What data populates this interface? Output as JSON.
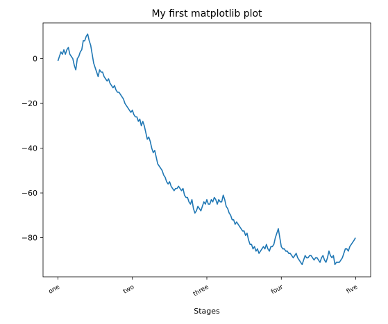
{
  "chart_data": {
    "type": "line",
    "title": "My first matplotlib plot",
    "xlabel": "Stages",
    "ylabel": "",
    "xlim": [
      -50,
      1050
    ],
    "ylim": [
      -97.5,
      16
    ],
    "x_ticks": [
      {
        "value": 0,
        "label": "one"
      },
      {
        "value": 250,
        "label": "two"
      },
      {
        "value": 500,
        "label": "three"
      },
      {
        "value": 750,
        "label": "four"
      },
      {
        "value": 1000,
        "label": "five"
      }
    ],
    "y_ticks": [
      {
        "value": 0,
        "label": "0"
      },
      {
        "value": -20,
        "label": "−20"
      },
      {
        "value": -40,
        "label": "−40"
      },
      {
        "value": -60,
        "label": "−60"
      },
      {
        "value": -80,
        "label": "−80"
      }
    ],
    "grid": false,
    "series": [
      {
        "color": "#1f77b4",
        "x": [
          0,
          5,
          10,
          15,
          20,
          25,
          30,
          35,
          40,
          45,
          50,
          55,
          60,
          65,
          70,
          75,
          80,
          85,
          90,
          95,
          100,
          105,
          110,
          115,
          120,
          125,
          130,
          135,
          140,
          145,
          150,
          155,
          160,
          165,
          170,
          175,
          180,
          185,
          190,
          195,
          200,
          205,
          210,
          215,
          220,
          225,
          230,
          235,
          240,
          245,
          250,
          255,
          260,
          265,
          270,
          275,
          280,
          285,
          290,
          295,
          300,
          305,
          310,
          315,
          320,
          325,
          330,
          335,
          340,
          345,
          350,
          355,
          360,
          365,
          370,
          375,
          380,
          385,
          390,
          395,
          400,
          405,
          410,
          415,
          420,
          425,
          430,
          435,
          440,
          445,
          450,
          455,
          460,
          465,
          470,
          475,
          480,
          485,
          490,
          495,
          500,
          505,
          510,
          515,
          520,
          525,
          530,
          535,
          540,
          545,
          550,
          555,
          560,
          565,
          570,
          575,
          580,
          585,
          590,
          595,
          600,
          605,
          610,
          615,
          620,
          625,
          630,
          635,
          640,
          645,
          650,
          655,
          660,
          665,
          670,
          675,
          680,
          685,
          690,
          695,
          700,
          705,
          710,
          715,
          720,
          725,
          730,
          735,
          740,
          745,
          750,
          755,
          760,
          765,
          770,
          775,
          780,
          785,
          790,
          795,
          800,
          805,
          810,
          815,
          820,
          825,
          830,
          835,
          840,
          845,
          850,
          855,
          860,
          865,
          870,
          875,
          880,
          885,
          890,
          895,
          900,
          905,
          910,
          915,
          920,
          925,
          930,
          935,
          940,
          945,
          950,
          955,
          960,
          965,
          970,
          975,
          980,
          985,
          990,
          995,
          999
        ],
        "y": [
          -1,
          1,
          3,
          2,
          4,
          2,
          4,
          5,
          2,
          1,
          0,
          -3,
          -5,
          0,
          1,
          3,
          4,
          8,
          8,
          10,
          11,
          8,
          6,
          2,
          -2,
          -4,
          -6,
          -8,
          -5,
          -6,
          -6,
          -8,
          -9,
          -10,
          -9,
          -11,
          -12,
          -13,
          -12,
          -14,
          -15,
          -15,
          -16,
          -17,
          -18,
          -20,
          -21,
          -22,
          -23,
          -24,
          -23,
          -25,
          -26,
          -26,
          -28,
          -27,
          -30,
          -28,
          -30,
          -33,
          -36,
          -35,
          -37,
          -40,
          -42,
          -41,
          -44,
          -47,
          -48,
          -49,
          -50,
          -52,
          -53,
          -55,
          -56,
          -55,
          -57,
          -58,
          -59,
          -58,
          -58,
          -57,
          -58,
          -59,
          -58,
          -61,
          -62,
          -62,
          -64,
          -65,
          -63,
          -67,
          -69,
          -68,
          -66,
          -67,
          -68,
          -66,
          -64,
          -65,
          -63,
          -65,
          -65,
          -63,
          -64,
          -62,
          -63,
          -65,
          -63,
          -64,
          -64,
          -61,
          -63,
          -66,
          -67,
          -69,
          -70,
          -72,
          -72,
          -74,
          -73,
          -74,
          -75,
          -76,
          -77,
          -77,
          -79,
          -78,
          -81,
          -83,
          -83,
          -85,
          -84,
          -86,
          -85,
          -87,
          -86,
          -85,
          -84,
          -85,
          -83,
          -85,
          -86,
          -84,
          -84,
          -83,
          -80,
          -78,
          -76,
          -80,
          -84,
          -85,
          -85,
          -86,
          -86,
          -87,
          -87,
          -88,
          -89,
          -88,
          -87,
          -89,
          -90,
          -91,
          -92,
          -90,
          -88,
          -89,
          -89,
          -88,
          -88,
          -89,
          -90,
          -89,
          -89,
          -90,
          -91,
          -89,
          -88,
          -90,
          -91,
          -89,
          -86,
          -88,
          -89,
          -88,
          -92,
          -91,
          -91,
          -91,
          -90,
          -89,
          -87,
          -85,
          -85,
          -86,
          -84,
          -83,
          -82,
          -81,
          -80
        ]
      }
    ]
  }
}
